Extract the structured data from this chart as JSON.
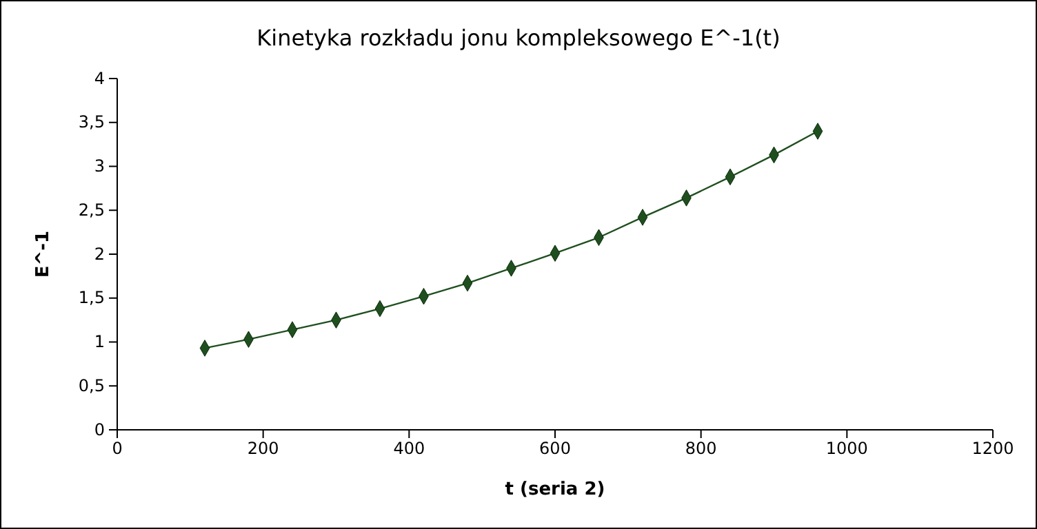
{
  "chart_data": {
    "type": "line",
    "title": "Kinetyka rozkładu jonu kompleksowego E^-1(t)",
    "xlabel": "t (seria 2)",
    "ylabel": "E^-1",
    "x": [
      120,
      180,
      240,
      300,
      360,
      420,
      480,
      540,
      600,
      660,
      720,
      780,
      840,
      900,
      960
    ],
    "series": [
      {
        "color": "#1f4f1f",
        "values": [
          0.93,
          1.03,
          1.14,
          1.25,
          1.38,
          1.52,
          1.67,
          1.84,
          2.01,
          2.19,
          2.42,
          2.64,
          2.88,
          3.13,
          3.4
        ]
      }
    ],
    "marker": "diamond",
    "line_style": "solid",
    "xlim": [
      0,
      1200
    ],
    "xticks": [
      0,
      200,
      400,
      600,
      800,
      1000,
      1200
    ],
    "ylim": [
      0,
      4
    ],
    "yticks": [
      0,
      {
        "value": 0.5,
        "label": "0,5"
      },
      1,
      {
        "value": 1.5,
        "label": "1,5"
      },
      2,
      {
        "value": 2.5,
        "label": "2,5"
      },
      3,
      {
        "value": 3.5,
        "label": "3,5"
      },
      4
    ]
  }
}
